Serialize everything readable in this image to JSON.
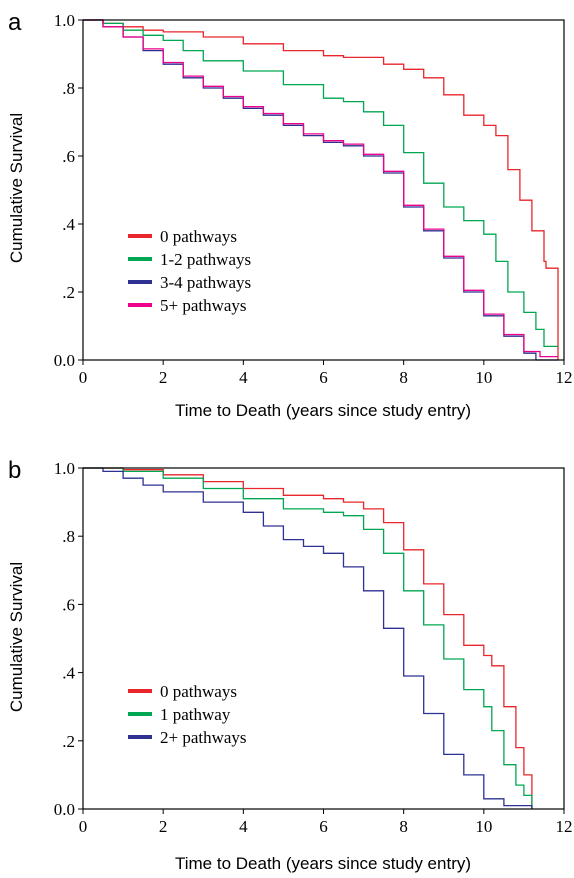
{
  "chart_data": [
    {
      "panel_label": "a",
      "type": "line",
      "step": true,
      "xlabel": "Time to Death (years since study entry)",
      "ylabel": "Cumulative Survival",
      "xlim": [
        0,
        12
      ],
      "ylim": [
        0,
        1
      ],
      "xticks": [
        0,
        2,
        4,
        6,
        8,
        10,
        12
      ],
      "xtick_labels": [
        "0",
        "2",
        "4",
        "6",
        "8",
        "10",
        "12"
      ],
      "yticks": [
        0,
        0.2,
        0.4,
        0.6,
        0.8,
        1.0
      ],
      "ytick_labels": [
        "0.0",
        ".2",
        ".4",
        ".6",
        ".8",
        "1.0"
      ],
      "legend_position": "lower-left",
      "series": [
        {
          "name": "0 pathways",
          "color": "#e8262b",
          "x": [
            0,
            0.5,
            1,
            1.5,
            2,
            3,
            4,
            5,
            6,
            6.5,
            7,
            7.5,
            8,
            8.5,
            9,
            9.5,
            10,
            10.3,
            10.6,
            10.9,
            11.2,
            11.5,
            11.55,
            11.85,
            11.85
          ],
          "y": [
            1.0,
            0.99,
            0.98,
            0.97,
            0.965,
            0.95,
            0.93,
            0.91,
            0.895,
            0.89,
            0.89,
            0.87,
            0.855,
            0.83,
            0.78,
            0.72,
            0.69,
            0.66,
            0.56,
            0.47,
            0.38,
            0.29,
            0.27,
            0.27,
            0.0
          ]
        },
        {
          "name": "1-2 pathways",
          "color": "#00a651",
          "x": [
            0,
            0.5,
            1,
            1.5,
            2,
            2.5,
            3,
            4,
            5,
            6,
            6.5,
            7,
            7.5,
            8,
            8.5,
            9,
            9.5,
            10,
            10.3,
            10.6,
            11,
            11.3,
            11.5,
            11.85
          ],
          "y": [
            1.0,
            0.99,
            0.97,
            0.955,
            0.94,
            0.91,
            0.88,
            0.85,
            0.81,
            0.77,
            0.76,
            0.73,
            0.69,
            0.61,
            0.52,
            0.45,
            0.41,
            0.37,
            0.29,
            0.2,
            0.14,
            0.09,
            0.04,
            0.04
          ]
        },
        {
          "name": "3-4 pathways",
          "color": "#2e3192",
          "x": [
            0,
            0.5,
            1,
            1.5,
            2,
            2.5,
            3,
            3.5,
            4,
            4.5,
            5,
            5.5,
            6,
            6.5,
            7,
            7.5,
            8,
            8.5,
            9,
            9.5,
            10,
            10.5,
            11,
            11.3,
            11.85
          ],
          "y": [
            1.0,
            0.98,
            0.95,
            0.91,
            0.87,
            0.83,
            0.8,
            0.77,
            0.74,
            0.72,
            0.69,
            0.66,
            0.64,
            0.63,
            0.6,
            0.55,
            0.45,
            0.38,
            0.3,
            0.2,
            0.13,
            0.07,
            0.02,
            0.0,
            0.0
          ]
        },
        {
          "name": "5+ pathways",
          "color": "#ec008c",
          "x": [
            0,
            0.5,
            1,
            1.5,
            2,
            2.5,
            3,
            3.5,
            4,
            4.5,
            5,
            5.5,
            6,
            6.5,
            7,
            7.5,
            8,
            8.5,
            9,
            9.5,
            10,
            10.5,
            11,
            11.4,
            11.85
          ],
          "y": [
            1.0,
            0.98,
            0.95,
            0.915,
            0.875,
            0.835,
            0.805,
            0.775,
            0.745,
            0.725,
            0.695,
            0.665,
            0.645,
            0.635,
            0.605,
            0.555,
            0.455,
            0.385,
            0.305,
            0.205,
            0.135,
            0.075,
            0.025,
            0.01,
            0.01
          ]
        }
      ]
    },
    {
      "panel_label": "b",
      "type": "line",
      "step": true,
      "xlabel": "Time to Death (years since study entry)",
      "ylabel": "Cumulative Survival",
      "xlim": [
        0,
        12
      ],
      "ylim": [
        0,
        1
      ],
      "xticks": [
        0,
        2,
        4,
        6,
        8,
        10,
        12
      ],
      "xtick_labels": [
        "0",
        "2",
        "4",
        "6",
        "8",
        "10",
        "12"
      ],
      "yticks": [
        0,
        0.2,
        0.4,
        0.6,
        0.8,
        1.0
      ],
      "ytick_labels": [
        "0.0",
        ".2",
        ".4",
        ".6",
        ".8",
        "1.0"
      ],
      "legend_position": "lower-left",
      "series": [
        {
          "name": "0 pathways",
          "color": "#e8262b",
          "x": [
            0,
            1,
            2,
            3,
            4,
            5,
            6,
            6.5,
            7,
            7.5,
            8,
            8.5,
            9,
            9.5,
            10,
            10.2,
            10.5,
            10.8,
            11,
            11.2
          ],
          "y": [
            1.0,
            0.995,
            0.98,
            0.96,
            0.94,
            0.92,
            0.91,
            0.9,
            0.88,
            0.84,
            0.76,
            0.66,
            0.57,
            0.48,
            0.45,
            0.42,
            0.3,
            0.18,
            0.1,
            0.0
          ]
        },
        {
          "name": "1 pathway",
          "color": "#00a651",
          "x": [
            0,
            1,
            2,
            3,
            4,
            5,
            6,
            6.5,
            7,
            7.5,
            8,
            8.5,
            9,
            9.5,
            10,
            10.2,
            10.5,
            10.8,
            11,
            11.2
          ],
          "y": [
            1.0,
            0.99,
            0.97,
            0.94,
            0.91,
            0.88,
            0.87,
            0.86,
            0.82,
            0.75,
            0.64,
            0.54,
            0.44,
            0.35,
            0.3,
            0.23,
            0.13,
            0.07,
            0.04,
            0.0
          ]
        },
        {
          "name": "2+ pathways",
          "color": "#2e3192",
          "x": [
            0,
            0.5,
            1,
            1.5,
            2,
            3,
            4,
            4.5,
            5,
            5.5,
            6,
            6.5,
            7,
            7.5,
            8,
            8.5,
            9,
            9.5,
            10,
            10.5,
            11,
            11.2
          ],
          "y": [
            1.0,
            0.99,
            0.97,
            0.95,
            0.93,
            0.9,
            0.87,
            0.83,
            0.79,
            0.77,
            0.75,
            0.71,
            0.64,
            0.53,
            0.39,
            0.28,
            0.16,
            0.1,
            0.03,
            0.01,
            0.01,
            0.0
          ]
        }
      ]
    }
  ]
}
